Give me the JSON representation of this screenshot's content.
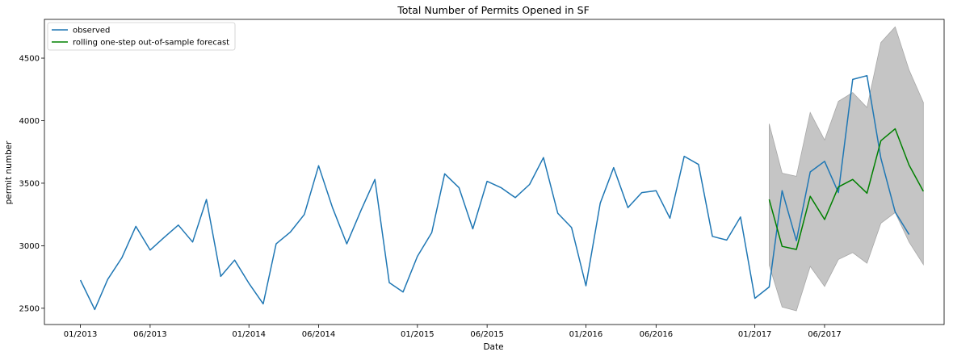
{
  "chart_data": {
    "type": "line",
    "title": "Total Number of Permits Opened in SF",
    "xlabel": "Date",
    "ylabel": "permit number",
    "ylim": [
      2370,
      4810
    ],
    "xlim": [
      "2012-10-15",
      "2018-02-15"
    ],
    "x_ticks": [
      {
        "date": "2013-01-01",
        "label": "01/2013"
      },
      {
        "date": "2013-06-01",
        "label": "06/2013"
      },
      {
        "date": "2014-01-01",
        "label": "01/2014"
      },
      {
        "date": "2014-06-01",
        "label": "06/2014"
      },
      {
        "date": "2015-01-01",
        "label": "01/2015"
      },
      {
        "date": "2015-06-01",
        "label": "06/2015"
      },
      {
        "date": "2016-01-01",
        "label": "01/2016"
      },
      {
        "date": "2016-06-01",
        "label": "06/2016"
      },
      {
        "date": "2017-01-01",
        "label": "01/2017"
      },
      {
        "date": "2017-06-01",
        "label": "06/2017"
      }
    ],
    "y_ticks": [
      2500,
      3000,
      3500,
      4000,
      4500
    ],
    "legend_position": "top-left",
    "series": [
      {
        "name": "observed",
        "color": "#1f77b4",
        "points": [
          [
            "2013-01-01",
            2725
          ],
          [
            "2013-02-01",
            2490
          ],
          [
            "2013-03-01",
            2730
          ],
          [
            "2013-04-01",
            2905
          ],
          [
            "2013-05-01",
            3155
          ],
          [
            "2013-06-01",
            2965
          ],
          [
            "2013-07-01",
            3065
          ],
          [
            "2013-08-01",
            3165
          ],
          [
            "2013-09-01",
            3030
          ],
          [
            "2013-10-01",
            3370
          ],
          [
            "2013-11-01",
            2755
          ],
          [
            "2013-12-01",
            2885
          ],
          [
            "2014-01-01",
            2700
          ],
          [
            "2014-02-01",
            2535
          ],
          [
            "2014-03-01",
            3015
          ],
          [
            "2014-04-01",
            3110
          ],
          [
            "2014-05-01",
            3250
          ],
          [
            "2014-06-01",
            3640
          ],
          [
            "2014-07-01",
            3305
          ],
          [
            "2014-08-01",
            3015
          ],
          [
            "2014-09-01",
            3285
          ],
          [
            "2014-10-01",
            3530
          ],
          [
            "2014-11-01",
            2705
          ],
          [
            "2014-12-01",
            2630
          ],
          [
            "2015-01-01",
            2915
          ],
          [
            "2015-02-01",
            3105
          ],
          [
            "2015-03-01",
            3575
          ],
          [
            "2015-04-01",
            3465
          ],
          [
            "2015-05-01",
            3135
          ],
          [
            "2015-06-01",
            3515
          ],
          [
            "2015-07-01",
            3465
          ],
          [
            "2015-08-01",
            3385
          ],
          [
            "2015-09-01",
            3490
          ],
          [
            "2015-10-01",
            3705
          ],
          [
            "2015-11-01",
            3260
          ],
          [
            "2015-12-01",
            3145
          ],
          [
            "2016-01-01",
            2680
          ],
          [
            "2016-02-01",
            3340
          ],
          [
            "2016-03-01",
            3625
          ],
          [
            "2016-04-01",
            3305
          ],
          [
            "2016-05-01",
            3425
          ],
          [
            "2016-06-01",
            3440
          ],
          [
            "2016-07-01",
            3220
          ],
          [
            "2016-08-01",
            3715
          ],
          [
            "2016-09-01",
            3650
          ],
          [
            "2016-10-01",
            3075
          ],
          [
            "2016-11-01",
            3045
          ],
          [
            "2016-12-01",
            3230
          ],
          [
            "2017-01-01",
            2580
          ],
          [
            "2017-02-01",
            2670
          ],
          [
            "2017-03-01",
            3440
          ],
          [
            "2017-04-01",
            3040
          ],
          [
            "2017-05-01",
            3590
          ],
          [
            "2017-06-01",
            3675
          ],
          [
            "2017-07-01",
            3425
          ],
          [
            "2017-08-01",
            4330
          ],
          [
            "2017-09-01",
            4360
          ],
          [
            "2017-10-01",
            3700
          ],
          [
            "2017-11-01",
            3270
          ],
          [
            "2017-12-01",
            3090
          ]
        ]
      },
      {
        "name": "rolling one-step out-of-sample forecast",
        "color": "#008000",
        "points": [
          [
            "2017-02-01",
            3370
          ],
          [
            "2017-03-01",
            2995
          ],
          [
            "2017-04-01",
            2970
          ],
          [
            "2017-05-01",
            3395
          ],
          [
            "2017-06-01",
            3210
          ],
          [
            "2017-07-01",
            3470
          ],
          [
            "2017-08-01",
            3530
          ],
          [
            "2017-09-01",
            3420
          ],
          [
            "2017-10-01",
            3840
          ],
          [
            "2017-11-01",
            3935
          ],
          [
            "2017-12-01",
            3645
          ],
          [
            "2018-01-01",
            3435
          ]
        ]
      }
    ],
    "confidence_band": {
      "color": "#bbbbbb",
      "upper": [
        [
          "2017-02-01",
          3975
        ],
        [
          "2017-03-01",
          3580
        ],
        [
          "2017-04-01",
          3555
        ],
        [
          "2017-05-01",
          4065
        ],
        [
          "2017-06-01",
          3845
        ],
        [
          "2017-07-01",
          4155
        ],
        [
          "2017-08-01",
          4225
        ],
        [
          "2017-09-01",
          4105
        ],
        [
          "2017-10-01",
          4625
        ],
        [
          "2017-11-01",
          4750
        ],
        [
          "2017-12-01",
          4405
        ],
        [
          "2018-01-01",
          4145
        ]
      ],
      "lower": [
        [
          "2017-02-01",
          2845
        ],
        [
          "2017-03-01",
          2510
        ],
        [
          "2017-04-01",
          2480
        ],
        [
          "2017-05-01",
          2835
        ],
        [
          "2017-06-01",
          2675
        ],
        [
          "2017-07-01",
          2890
        ],
        [
          "2017-08-01",
          2945
        ],
        [
          "2017-09-01",
          2860
        ],
        [
          "2017-10-01",
          3180
        ],
        [
          "2017-11-01",
          3265
        ],
        [
          "2017-12-01",
          3030
        ],
        [
          "2018-01-01",
          2850
        ]
      ]
    }
  }
}
